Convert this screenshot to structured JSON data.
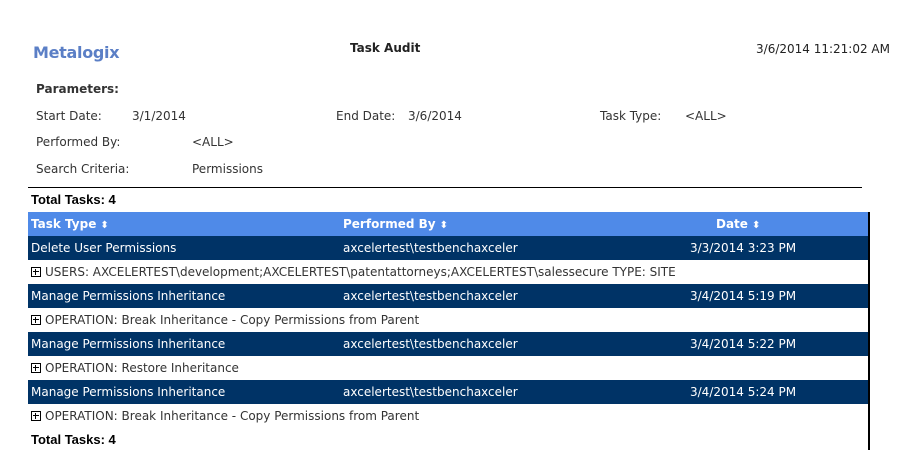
{
  "header": {
    "logo": "Metalogix",
    "title": "Task Audit",
    "timestamp": "3/6/2014 11:21:02 AM"
  },
  "parameters": {
    "heading": "Parameters:",
    "start_label": "Start Date:",
    "start_value": "3/1/2014",
    "end_label": "End Date:",
    "end_value": "3/6/2014",
    "type_label": "Task Type:",
    "type_value": "<ALL>",
    "by_label": "Performed By:",
    "by_value": "<ALL>",
    "criteria_label": "Search Criteria:",
    "criteria_value": "Permissions"
  },
  "total_top": "Total Tasks: 4",
  "total_bottom": "Total Tasks: 4",
  "columns": [
    "Task Type",
    "Performed By",
    "Date"
  ],
  "sort_icon": "sort-updown-icon",
  "colors": {
    "header": "#4f8ae8",
    "row": "#003366"
  },
  "rows": [
    {
      "type": "Delete User Permissions",
      "by": "axcelertest\\testbenchaxceler",
      "date": "3/3/2014 3:23 PM",
      "detail": "USERS: AXCELERTEST\\development;AXCELERTEST\\patentattorneys;AXCELERTEST\\salessecure  TYPE: SITE"
    },
    {
      "type": "Manage Permissions Inheritance",
      "by": "axcelertest\\testbenchaxceler",
      "date": "3/4/2014 5:19 PM",
      "detail": "OPERATION: Break Inheritance - Copy Permissions from Parent"
    },
    {
      "type": "Manage Permissions Inheritance",
      "by": "axcelertest\\testbenchaxceler",
      "date": "3/4/2014 5:22 PM",
      "detail": "OPERATION: Restore Inheritance"
    },
    {
      "type": "Manage Permissions Inheritance",
      "by": "axcelertest\\testbenchaxceler",
      "date": "3/4/2014 5:24 PM",
      "detail": "OPERATION: Break Inheritance - Copy Permissions from Parent"
    }
  ]
}
